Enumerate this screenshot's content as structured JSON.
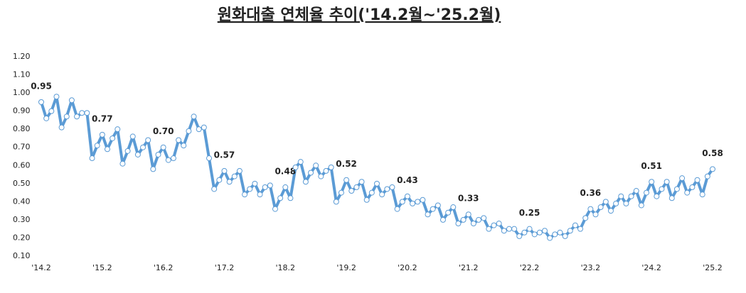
{
  "chart_data": {
    "type": "line",
    "title": "원화대출 연체율 추이('14.2월~'25.2월)",
    "color": "#5b9bd5",
    "categories": [
      "'14.2",
      null,
      null,
      null,
      null,
      null,
      null,
      null,
      null,
      null,
      null,
      null,
      "'15.2",
      null,
      null,
      null,
      null,
      null,
      null,
      null,
      null,
      null,
      null,
      null,
      "'16.2",
      null,
      null,
      null,
      null,
      null,
      null,
      null,
      null,
      null,
      null,
      null,
      "'17.2",
      null,
      null,
      null,
      null,
      null,
      null,
      null,
      null,
      null,
      null,
      null,
      "'18.2",
      null,
      null,
      null,
      null,
      null,
      null,
      null,
      null,
      null,
      null,
      null,
      "'19.2",
      null,
      null,
      null,
      null,
      null,
      null,
      null,
      null,
      null,
      null,
      null,
      "'20.2",
      null,
      null,
      null,
      null,
      null,
      null,
      null,
      null,
      null,
      null,
      null,
      "'21.2",
      null,
      null,
      null,
      null,
      null,
      null,
      null,
      null,
      null,
      null,
      null,
      "'22.2",
      null,
      null,
      null,
      null,
      null,
      null,
      null,
      null,
      null,
      null,
      null,
      "'23.2",
      null,
      null,
      null,
      null,
      null,
      null,
      null,
      null,
      null,
      null,
      null,
      "'24.2",
      null,
      null,
      null,
      null,
      null,
      null,
      null,
      null,
      null,
      null,
      null,
      "'25.2"
    ],
    "values": [
      0.95,
      0.86,
      0.9,
      0.98,
      0.81,
      0.87,
      0.96,
      0.87,
      0.89,
      0.89,
      0.64,
      0.71,
      0.77,
      0.69,
      0.75,
      0.8,
      0.61,
      0.68,
      0.76,
      0.66,
      0.7,
      0.74,
      0.58,
      0.66,
      0.7,
      0.63,
      0.64,
      0.74,
      0.71,
      0.79,
      0.87,
      0.8,
      0.81,
      0.64,
      0.47,
      0.52,
      0.57,
      0.51,
      0.54,
      0.57,
      0.44,
      0.47,
      0.5,
      0.44,
      0.48,
      0.49,
      0.36,
      0.42,
      0.48,
      0.42,
      0.59,
      0.62,
      0.51,
      0.56,
      0.6,
      0.54,
      0.57,
      0.59,
      0.4,
      0.45,
      0.52,
      0.46,
      0.48,
      0.51,
      0.41,
      0.45,
      0.5,
      0.44,
      0.47,
      0.48,
      0.36,
      0.4,
      0.43,
      0.39,
      0.4,
      0.41,
      0.33,
      0.36,
      0.38,
      0.3,
      0.34,
      0.37,
      0.28,
      0.3,
      0.33,
      0.28,
      0.3,
      0.31,
      0.25,
      0.27,
      0.28,
      0.24,
      0.25,
      0.25,
      0.21,
      0.23,
      0.25,
      0.22,
      0.23,
      0.24,
      0.2,
      0.22,
      0.23,
      0.21,
      0.24,
      0.27,
      0.25,
      0.31,
      0.36,
      0.33,
      0.37,
      0.4,
      0.35,
      0.39,
      0.43,
      0.39,
      0.43,
      0.46,
      0.38,
      0.45,
      0.51,
      0.43,
      0.47,
      0.51,
      0.42,
      0.47,
      0.53,
      0.45,
      0.48,
      0.52,
      0.44,
      0.54,
      0.58
    ],
    "value_labels": [
      "0.95",
      null,
      null,
      null,
      null,
      null,
      null,
      null,
      null,
      null,
      null,
      null,
      "0.77",
      null,
      null,
      null,
      null,
      null,
      null,
      null,
      null,
      null,
      null,
      null,
      "0.70",
      null,
      null,
      null,
      null,
      null,
      null,
      null,
      null,
      null,
      null,
      null,
      "0.57",
      null,
      null,
      null,
      null,
      null,
      null,
      null,
      null,
      null,
      null,
      null,
      "0.48",
      null,
      null,
      null,
      null,
      null,
      null,
      null,
      null,
      null,
      null,
      null,
      "0.52",
      null,
      null,
      null,
      null,
      null,
      null,
      null,
      null,
      null,
      null,
      null,
      "0.43",
      null,
      null,
      null,
      null,
      null,
      null,
      null,
      null,
      null,
      null,
      null,
      "0.33",
      null,
      null,
      null,
      null,
      null,
      null,
      null,
      null,
      null,
      null,
      null,
      "0.25",
      null,
      null,
      null,
      null,
      null,
      null,
      null,
      null,
      null,
      null,
      null,
      "0.36",
      null,
      null,
      null,
      null,
      null,
      null,
      null,
      null,
      null,
      null,
      null,
      "0.51",
      null,
      null,
      null,
      null,
      null,
      null,
      null,
      null,
      null,
      null,
      null,
      "0.58"
    ],
    "ylim": [
      0.1,
      1.2
    ],
    "yticks": [
      {
        "value": 0.1,
        "label": "0.10"
      },
      {
        "value": 0.2,
        "label": "0.20"
      },
      {
        "value": 0.3,
        "label": "0.30"
      },
      {
        "value": 0.4,
        "label": "0.40"
      },
      {
        "value": 0.5,
        "label": "0.50"
      },
      {
        "value": 0.6,
        "label": "0.60"
      },
      {
        "value": 0.7,
        "label": "0.70"
      },
      {
        "value": 0.8,
        "label": "0.80"
      },
      {
        "value": 0.9,
        "label": "0.90"
      },
      {
        "value": 1.0,
        "label": "1.00"
      },
      {
        "value": 1.1,
        "label": "1.10"
      },
      {
        "value": 1.2,
        "label": "1.20"
      }
    ],
    "grid": false
  }
}
